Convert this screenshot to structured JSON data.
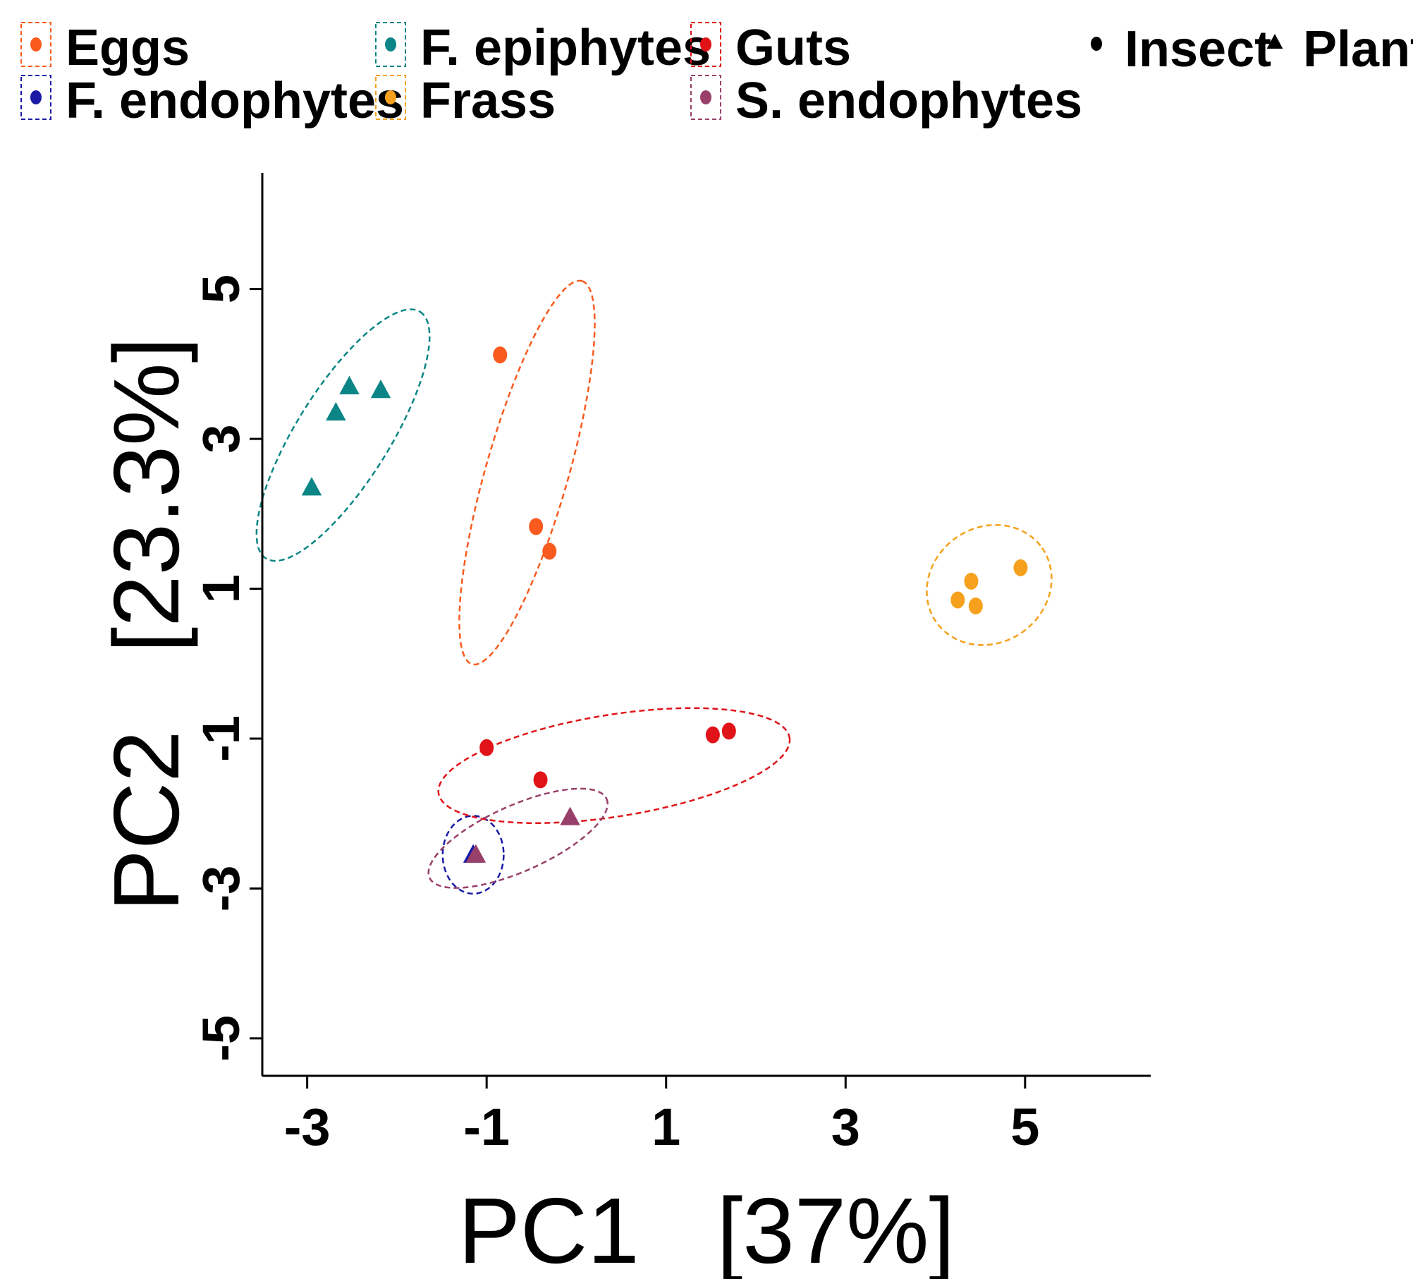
{
  "chart_data": {
    "type": "scatter",
    "title": "",
    "xlabel": "PC1   [37%]",
    "ylabel": "PC2   [23.3%]",
    "xlim": [
      -3.5,
      6.4
    ],
    "ylim": [
      -5.5,
      6.55
    ],
    "xticks": [
      -3,
      -1,
      1,
      3,
      5
    ],
    "yticks": [
      -5,
      -3,
      -1,
      1,
      3,
      5
    ],
    "xtick_labels": [
      "-3",
      "-1",
      "1",
      "3",
      "5"
    ],
    "ytick_labels": [
      "-5",
      "-3",
      "-1",
      "1",
      "3",
      "5"
    ],
    "grid": false,
    "legend_position": "top",
    "series": [
      {
        "name": "Eggs",
        "color": "#f95a1e",
        "shape": "circle",
        "group": "Insect",
        "points": [
          [
            -0.85,
            4.12
          ],
          [
            -0.45,
            1.83
          ],
          [
            -0.3,
            1.5
          ]
        ]
      },
      {
        "name": "F. endophytes",
        "color": "#1a1aa6",
        "shape": "triangle",
        "group": "Plant",
        "points": [
          [
            -1.15,
            -2.55
          ]
        ]
      },
      {
        "name": "F. epiphytes",
        "color": "#0b8585",
        "shape": "triangle",
        "group": "Plant",
        "points": [
          [
            -2.95,
            2.35
          ],
          [
            -2.68,
            3.35
          ],
          [
            -2.53,
            3.7
          ],
          [
            -2.18,
            3.65
          ]
        ]
      },
      {
        "name": "Frass",
        "color": "#f5a11e",
        "shape": "circle",
        "group": "Insect",
        "points": [
          [
            4.25,
            0.85
          ],
          [
            4.4,
            1.1
          ],
          [
            4.45,
            0.77
          ],
          [
            4.95,
            1.28
          ]
        ]
      },
      {
        "name": "Guts",
        "color": "#e01418",
        "shape": "circle",
        "group": "Insect",
        "points": [
          [
            -1.0,
            -1.12
          ],
          [
            -0.4,
            -1.55
          ],
          [
            1.52,
            -0.95
          ],
          [
            1.7,
            -0.9
          ]
        ]
      },
      {
        "name": "S. endophytes",
        "color": "#99406a",
        "shape": "triangle",
        "group": "Plant",
        "points": [
          [
            -1.12,
            -2.55
          ],
          [
            -0.07,
            -2.05
          ]
        ]
      }
    ],
    "legend_groups": [
      {
        "name": "Eggs",
        "color": "#f95a1e"
      },
      {
        "name": "F. endophytes",
        "color": "#1a1aa6"
      },
      {
        "name": "F. epiphytes",
        "color": "#0b8585"
      },
      {
        "name": "Frass",
        "color": "#f5a11e"
      },
      {
        "name": "Guts",
        "color": "#e01418"
      },
      {
        "name": "S. endophytes",
        "color": "#99406a"
      }
    ],
    "legend_shapes": [
      {
        "name": "Insect",
        "shape": "circle"
      },
      {
        "name": "Plant",
        "shape": "triangle"
      }
    ]
  }
}
